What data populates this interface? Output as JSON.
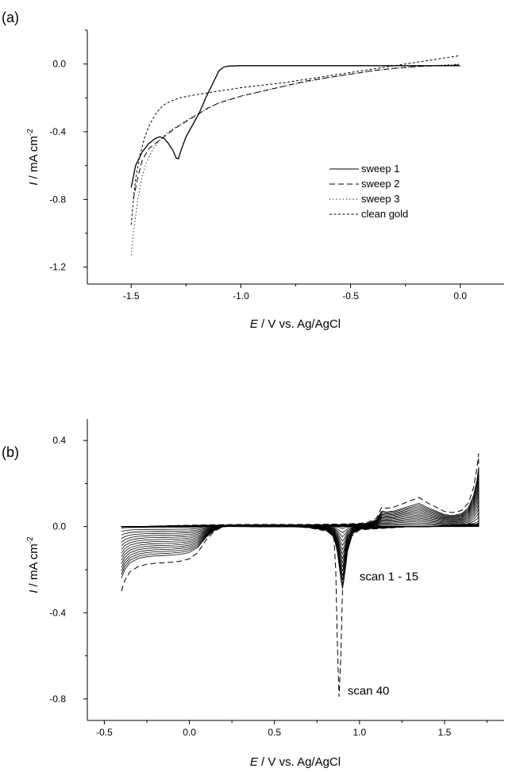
{
  "chart_data": [
    {
      "type": "line",
      "panel_label": "(a)",
      "xlabel_italic": "E",
      "xlabel": " / V vs. Ag/AgCl",
      "ylabel_italic": "I",
      "ylabel": " / mA cm",
      "ylabel_sup": "-2",
      "xlim": [
        -1.7,
        0.2
      ],
      "ylim": [
        -1.3,
        0.2
      ],
      "xticks": [
        -1.5,
        -1.0,
        -0.5,
        0.0
      ],
      "xtick_labels": [
        "-1.5",
        "-1.0",
        "-0.5",
        "0.0"
      ],
      "yticks": [
        -1.2,
        -0.8,
        -0.4,
        0.0
      ],
      "ytick_labels": [
        "-1.2",
        "-0.8",
        "-0.4",
        "0.0"
      ],
      "legend_position": "center-right",
      "series": [
        {
          "name": "sweep 1",
          "dash": "solid",
          "x": [
            -1.5,
            -1.48,
            -1.45,
            -1.42,
            -1.39,
            -1.37,
            -1.35,
            -1.33,
            -1.31,
            -1.295,
            -1.285,
            -1.27,
            -1.25,
            -1.22,
            -1.19,
            -1.16,
            -1.13,
            -1.1,
            -1.08,
            -1.07,
            -1.05,
            -1.0,
            -0.5,
            0.0
          ],
          "y": [
            -0.73,
            -0.6,
            -0.52,
            -0.47,
            -0.44,
            -0.43,
            -0.44,
            -0.47,
            -0.51,
            -0.555,
            -0.56,
            -0.5,
            -0.43,
            -0.36,
            -0.29,
            -0.2,
            -0.12,
            -0.04,
            -0.02,
            -0.015,
            -0.012,
            -0.01,
            -0.01,
            -0.01
          ]
        },
        {
          "name": "sweep 2",
          "dash": "dashed",
          "x": [
            -1.49,
            -1.47,
            -1.45,
            -1.42,
            -1.39,
            -1.36,
            -1.33,
            -1.3,
            -1.25,
            -1.2,
            -1.15,
            -1.1,
            -1.05,
            -1.0,
            -0.9,
            -0.8,
            -0.7,
            -0.6,
            -0.5,
            -0.4,
            -0.3,
            -0.2,
            -0.1,
            0.0
          ],
          "y": [
            -0.8,
            -0.67,
            -0.57,
            -0.5,
            -0.47,
            -0.44,
            -0.41,
            -0.38,
            -0.34,
            -0.3,
            -0.26,
            -0.23,
            -0.21,
            -0.19,
            -0.16,
            -0.13,
            -0.1,
            -0.08,
            -0.06,
            -0.04,
            -0.025,
            -0.015,
            -0.01,
            -0.005
          ]
        },
        {
          "name": "sweep 3",
          "dash": "dotted",
          "x": [
            -1.5,
            -1.49,
            -1.48,
            -1.47,
            -1.46,
            -1.45,
            -1.43,
            -1.4,
            -1.37,
            -1.33,
            -1.28,
            -1.22,
            -1.16,
            -1.1,
            -1.0,
            -0.9,
            -0.8,
            -0.6,
            -0.4,
            -0.2,
            0.0
          ],
          "y": [
            -1.13,
            -1.0,
            -0.9,
            -0.8,
            -0.73,
            -0.66,
            -0.58,
            -0.5,
            -0.45,
            -0.4,
            -0.36,
            -0.31,
            -0.27,
            -0.23,
            -0.19,
            -0.16,
            -0.13,
            -0.08,
            -0.04,
            -0.015,
            0.0
          ]
        },
        {
          "name": "clean gold",
          "dash": "short-dash",
          "x": [
            -1.5,
            -1.49,
            -1.48,
            -1.46,
            -1.44,
            -1.42,
            -1.4,
            -1.38,
            -1.35,
            -1.32,
            -1.28,
            -1.2,
            -1.1,
            -1.0,
            -0.8,
            -0.6,
            -0.4,
            -0.3,
            -0.2,
            -0.1,
            0.0
          ],
          "y": [
            -0.95,
            -0.8,
            -0.68,
            -0.54,
            -0.44,
            -0.37,
            -0.32,
            -0.28,
            -0.24,
            -0.22,
            -0.2,
            -0.18,
            -0.16,
            -0.14,
            -0.11,
            -0.07,
            -0.03,
            -0.01,
            0.01,
            0.03,
            0.05
          ]
        }
      ]
    },
    {
      "type": "line",
      "panel_label": "(b)",
      "xlabel_italic": "E",
      "xlabel": " / V vs. Ag/AgCl",
      "ylabel_italic": "I",
      "ylabel": " / mA cm",
      "ylabel_sup": "-2",
      "xlim": [
        -0.6,
        1.85
      ],
      "ylim": [
        -0.9,
        0.5
      ],
      "xticks": [
        -0.5,
        0.0,
        0.5,
        1.0,
        1.5
      ],
      "xtick_labels": [
        "-0.5",
        "0.0",
        "0.5",
        "1.0",
        "1.5"
      ],
      "yticks": [
        -0.8,
        -0.4,
        0.0,
        0.4
      ],
      "ytick_labels": [
        "-0.8",
        "-0.4",
        "0.0",
        "0.4"
      ],
      "annotations": [
        {
          "text": "scan 1 - 15",
          "x": 1.0,
          "y": -0.25
        },
        {
          "text": "scan 40",
          "x": 0.93,
          "y": -0.78
        }
      ],
      "cathodic_shape": {
        "x": [
          -0.4,
          -0.38,
          -0.35,
          -0.3,
          -0.25,
          -0.2,
          -0.15,
          -0.1,
          -0.05,
          0.0,
          0.05,
          0.1,
          0.15,
          0.2,
          0.25,
          0.3,
          0.4,
          0.5,
          0.6,
          0.7,
          0.8,
          0.85,
          0.87,
          0.89,
          0.9,
          0.91,
          0.93,
          0.96,
          1.0,
          1.1,
          1.2,
          1.3,
          1.4,
          1.5,
          1.6,
          1.7
        ],
        "y": [
          -0.3,
          -0.25,
          -0.21,
          -0.185,
          -0.175,
          -0.17,
          -0.168,
          -0.165,
          -0.16,
          -0.15,
          -0.12,
          -0.06,
          -0.02,
          0.0,
          0.005,
          0.002,
          0.0,
          0.0,
          0.0,
          -0.005,
          -0.02,
          -0.06,
          -0.15,
          -0.3,
          -0.36,
          -0.3,
          -0.14,
          -0.04,
          -0.015,
          -0.01,
          -0.005,
          0.0,
          0.0,
          0.005,
          0.01,
          0.015
        ]
      },
      "anodic_shape": {
        "x": [
          -0.4,
          -0.3,
          -0.1,
          0.1,
          0.3,
          0.5,
          0.7,
          0.9,
          1.0,
          1.05,
          1.1,
          1.13,
          1.16,
          1.2,
          1.25,
          1.3,
          1.35,
          1.4,
          1.45,
          1.5,
          1.55,
          1.6,
          1.64,
          1.67,
          1.69,
          1.7
        ],
        "y": [
          0.0,
          0.0,
          0.005,
          0.008,
          0.01,
          0.01,
          0.01,
          0.012,
          0.015,
          0.02,
          0.04,
          0.09,
          0.085,
          0.09,
          0.105,
          0.12,
          0.135,
          0.11,
          0.09,
          0.07,
          0.065,
          0.075,
          0.11,
          0.18,
          0.27,
          0.34
        ]
      },
      "series": [
        {
          "name": "scan 1 - 15",
          "count": 15,
          "dash": "solid",
          "scale_from": 0.02,
          "scale_to": 0.8
        },
        {
          "name": "scan 40",
          "count": 1,
          "dash": "dashed",
          "scale_from": 1.0,
          "scale_to": 1.0,
          "peak_override": {
            "x": [
              0.83,
              0.85,
              0.86,
              0.87,
              0.88,
              0.89,
              0.9,
              0.91,
              0.93
            ],
            "y": [
              -0.02,
              -0.06,
              -0.2,
              -0.55,
              -0.79,
              -0.6,
              -0.3,
              -0.12,
              -0.04
            ]
          }
        }
      ]
    }
  ]
}
